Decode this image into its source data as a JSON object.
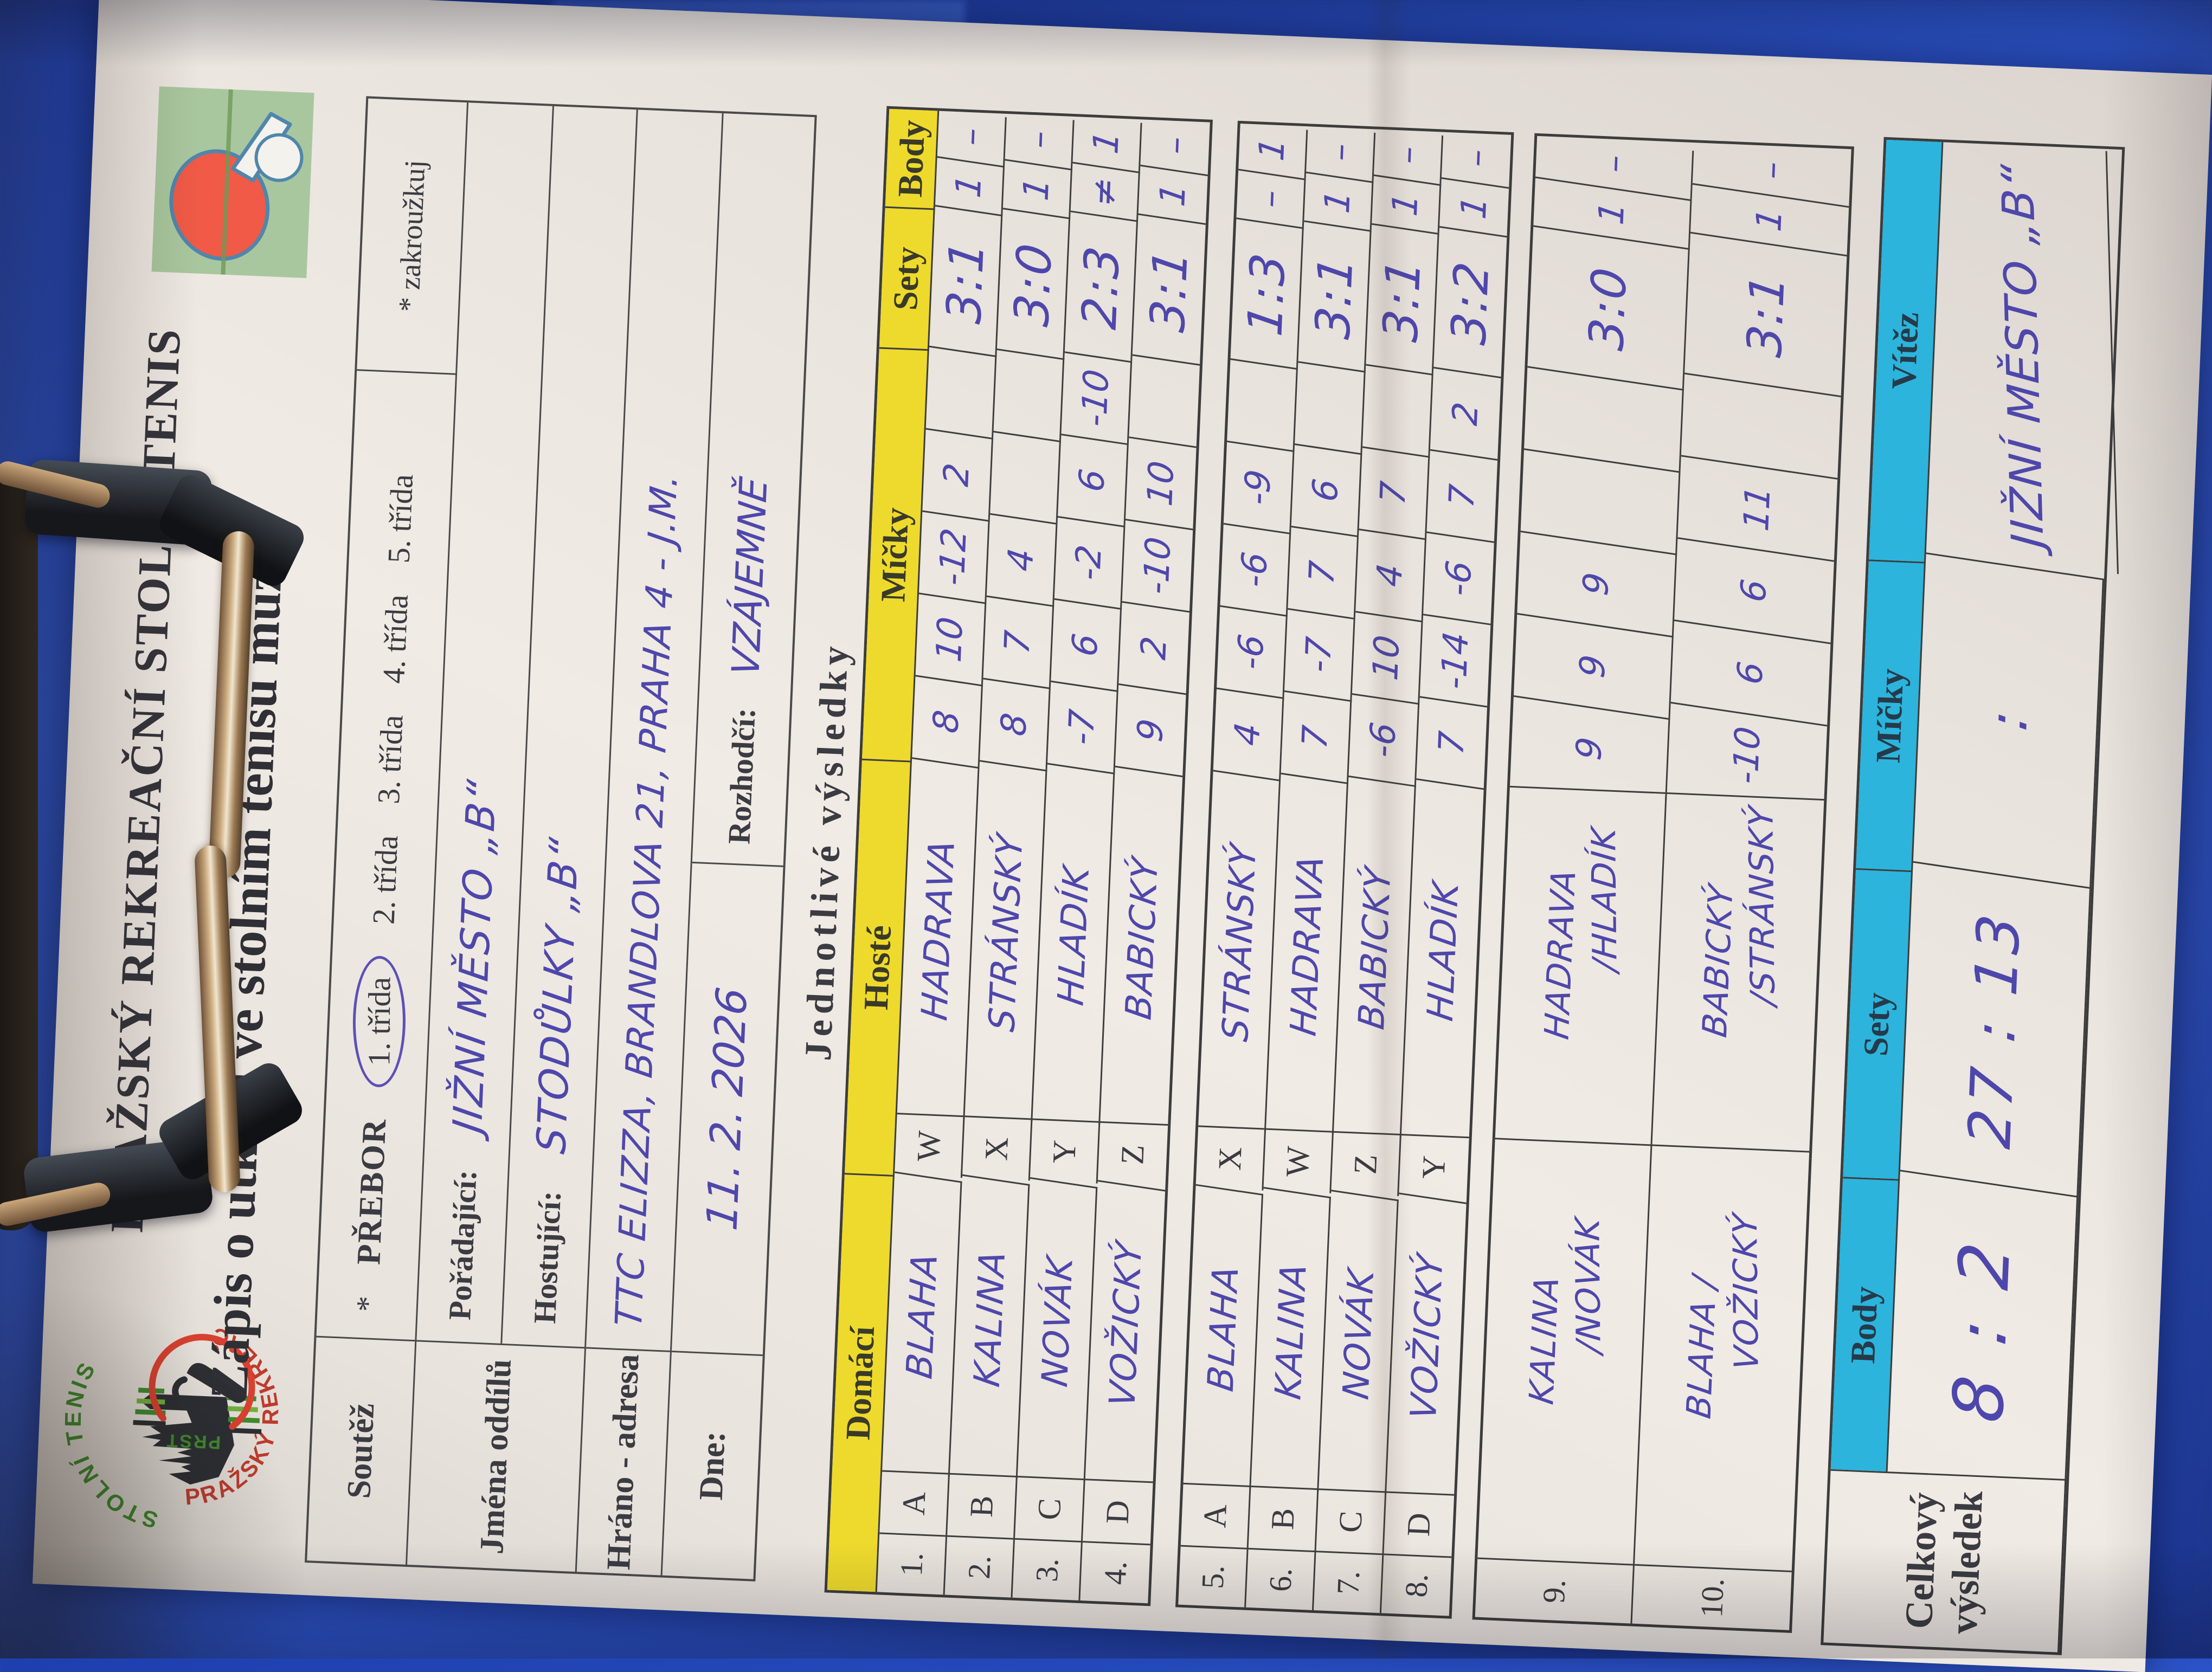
{
  "colors": {
    "clipboard_blue": "#2b52c6",
    "paper": "#ece6e0",
    "header_yellow": "#eeda2c",
    "header_cyan": "#2cb4dc",
    "ink_blue": "#4e47ab",
    "logo_green": "#a9c79e",
    "paddle_red": "#f05a46"
  },
  "page": {
    "org_line": "PRAŽSKÝ REKREAČNÍ STOLNÍ TENIS",
    "title": "Zápis o utkání ve stolním tenisu mužů",
    "section_heading": "Jednotlivé výsledky"
  },
  "club_logo": {
    "ring_text_1": "PRAŽSKÝ REKREAČNÍ",
    "ring_text_2": "STOLNÍ TENIS",
    "abbr": "PRST"
  },
  "header_table": {
    "soutez_label": "Soutěž",
    "soutez_star": "*",
    "soutez_value": "PŘEBOR",
    "classes": [
      "1. třída",
      "2. třída",
      "3. třída",
      "4. třída",
      "5. třída"
    ],
    "circled_class": "1. třída",
    "zakrouzkuj": "* zakroužkuj",
    "jmena_label": "Jména oddílů",
    "poradajici_label": "Pořádající:",
    "poradajici_value": "JIŽNÍ MĚSTO „B“",
    "hostujici_label": "Hostující:",
    "hostujici_value": "STODŮLKY „B“",
    "hrano_label": "Hráno - adresa",
    "hrano_value": "TTC ELIZZA, BRANDLOVA 21, PRAHA 4 - J.M.",
    "dne_label": "Dne:",
    "dne_value": "11. 2. 2026",
    "rozhodci_label": "Rozhodčí:",
    "rozhodci_value": "VZÁJEMNĚ"
  },
  "results": {
    "headers": {
      "domaci": "Domácí",
      "hoste": "Hosté",
      "micky": "Míčky",
      "sety": "Sety",
      "body": "Body"
    },
    "singles1": [
      {
        "no": "1.",
        "hl": "A",
        "home": "BLAHA",
        "gl": "W",
        "guest": "HADRAVA",
        "micky": [
          "8",
          "10",
          "-12",
          "2",
          ""
        ],
        "sety": "3:1",
        "body_d": "1",
        "body_h": "–"
      },
      {
        "no": "2.",
        "hl": "B",
        "home": "KALINA",
        "gl": "X",
        "guest": "STRÁNSKÝ",
        "micky": [
          "8",
          "7",
          "4",
          "",
          ""
        ],
        "sety": "3:0",
        "body_d": "1",
        "body_h": "–"
      },
      {
        "no": "3.",
        "hl": "C",
        "home": "NOVÁK",
        "gl": "Y",
        "guest": "HLADÍK",
        "micky": [
          "-7",
          "6",
          "-2",
          "6",
          "-10"
        ],
        "sety": "2:3",
        "body_d": "≠",
        "body_h": "1"
      },
      {
        "no": "4.",
        "hl": "D",
        "home": "VOŽICKÝ",
        "gl": "Z",
        "guest": "BABICKÝ",
        "micky": [
          "9",
          "2",
          "-10",
          "10",
          ""
        ],
        "sety": "3:1",
        "body_d": "1",
        "body_h": "–"
      }
    ],
    "singles2": [
      {
        "no": "5.",
        "hl": "A",
        "home": "BLAHA",
        "gl": "X",
        "guest": "STRÁNSKÝ",
        "micky": [
          "4",
          "-6",
          "-6",
          "-9",
          ""
        ],
        "sety": "1:3",
        "body_d": "–",
        "body_h": "1"
      },
      {
        "no": "6.",
        "hl": "B",
        "home": "KALINA",
        "gl": "W",
        "guest": "HADRAVA",
        "micky": [
          "7",
          "-7",
          "7",
          "6",
          ""
        ],
        "sety": "3:1",
        "body_d": "1",
        "body_h": "–"
      },
      {
        "no": "7.",
        "hl": "C",
        "home": "NOVÁK",
        "gl": "Z",
        "guest": "BABICKÝ",
        "micky": [
          "-6",
          "10",
          "4",
          "7",
          ""
        ],
        "sety": "3:1",
        "body_d": "1",
        "body_h": "–"
      },
      {
        "no": "8.",
        "hl": "D",
        "home": "VOŽICKÝ",
        "gl": "Y",
        "guest": "HLADÍK",
        "micky": [
          "7",
          "-14",
          "-6",
          "7",
          "2"
        ],
        "sety": "3:2",
        "body_d": "1",
        "body_h": "–"
      }
    ],
    "doubles": [
      {
        "no": "9.",
        "home1": "KALINA",
        "home2": "/NOVÁK",
        "guest1": "HADRAVA",
        "guest2": "/HLADÍK",
        "micky": [
          "9",
          "9",
          "9",
          "",
          ""
        ],
        "sety": "3:0",
        "body_d": "1",
        "body_h": "–"
      },
      {
        "no": "10.",
        "home1": "BLAHA /",
        "home2": "VOŽICKÝ",
        "guest1": "BABICKÝ",
        "guest2": "/STRÁNSKÝ",
        "micky": [
          "-10",
          "6",
          "6",
          "11",
          ""
        ],
        "sety": "3:1",
        "body_d": "1",
        "body_h": "–"
      }
    ]
  },
  "total": {
    "label_line1": "Celkový",
    "label_line2": "výsledek",
    "cols": [
      "Body",
      "Sety",
      "Míčky",
      "Vítěz"
    ],
    "body": "8 : 2",
    "sety": "27 : 13",
    "micky": ":",
    "vitez": "JIŽNÍ MĚSTO „B“"
  }
}
